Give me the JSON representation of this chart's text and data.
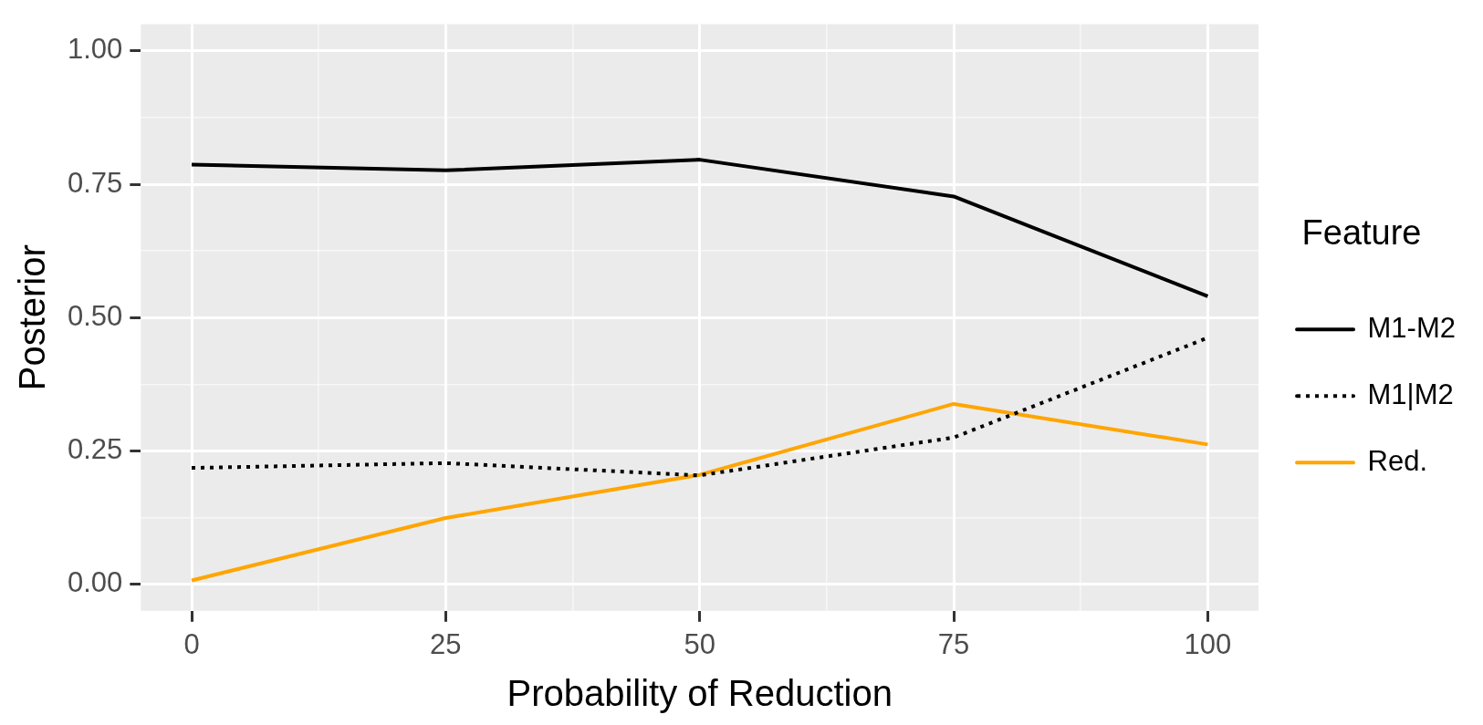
{
  "chart_data": {
    "type": "line",
    "xlabel": "Probability of Reduction",
    "ylabel": "Posterior",
    "legend_title": "Feature",
    "legend": "right",
    "grid": true,
    "x": [
      0,
      25,
      50,
      75,
      100
    ],
    "xlim": [
      -5,
      105
    ],
    "xticks": [
      0,
      {
        "value": 12.5,
        "label": null
      },
      25,
      {
        "value": 37.5,
        "label": null
      },
      50,
      {
        "value": 62.5,
        "label": null
      },
      75,
      {
        "value": 87.5,
        "label": null
      },
      100
    ],
    "ylim": [
      -0.05,
      1.05
    ],
    "yticks": [
      "0.00",
      {
        "value": 0.125,
        "label": null
      },
      {
        "value": 0.25,
        "label": "0.25"
      },
      {
        "value": 0.375,
        "label": null
      },
      {
        "value": 0.5,
        "label": "0.50"
      },
      {
        "value": 0.625,
        "label": null
      },
      {
        "value": 0.75,
        "label": "0.75"
      },
      {
        "value": 0.875,
        "label": null
      },
      {
        "value": 1,
        "label": "1.00"
      }
    ],
    "series": [
      {
        "name": "M1-M2",
        "color": "#000000",
        "line_style": "solid",
        "values": [
          0.787,
          0.776,
          0.796,
          0.727,
          0.54
        ]
      },
      {
        "name": "M1|M2",
        "color": "#000000",
        "line_style": "dotted",
        "values": [
          0.218,
          0.227,
          0.204,
          0.275,
          0.462
        ]
      },
      {
        "name": "Red.",
        "color": "#ffa500",
        "line_style": "solid",
        "values": [
          0.007,
          0.124,
          0.205,
          0.338,
          0.262
        ]
      }
    ]
  }
}
